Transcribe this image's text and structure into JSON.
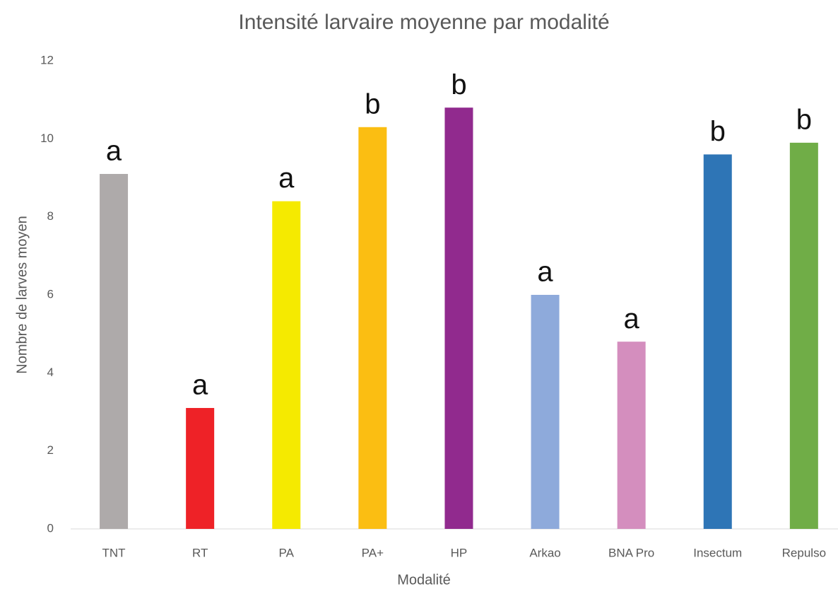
{
  "chart_data": {
    "type": "bar",
    "title": "Intensité larvaire moyenne par modalité",
    "x_label": "Modalité",
    "y_label": "Nombre de larves moyen",
    "categories": [
      "TNT",
      "RT",
      "PA",
      "PA+",
      "HP",
      "Arkao",
      "BNA Pro",
      "Insectum",
      "Repulso"
    ],
    "values": [
      9.1,
      3.1,
      8.4,
      10.3,
      10.8,
      6.0,
      4.8,
      9.6,
      9.9
    ],
    "colors": [
      "#aeaaaa",
      "#ee2227",
      "#f5ea00",
      "#fbbe12",
      "#912a8e",
      "#8eaadb",
      "#d48ebe",
      "#2e75b6",
      "#70ad47"
    ],
    "annotations": [
      "a",
      "a",
      "a",
      "b",
      "b",
      "a",
      "a",
      "b",
      "b"
    ],
    "ylim": [
      0,
      12
    ],
    "yticks": [
      0,
      2,
      4,
      6,
      8,
      10,
      12
    ],
    "grid": false
  }
}
